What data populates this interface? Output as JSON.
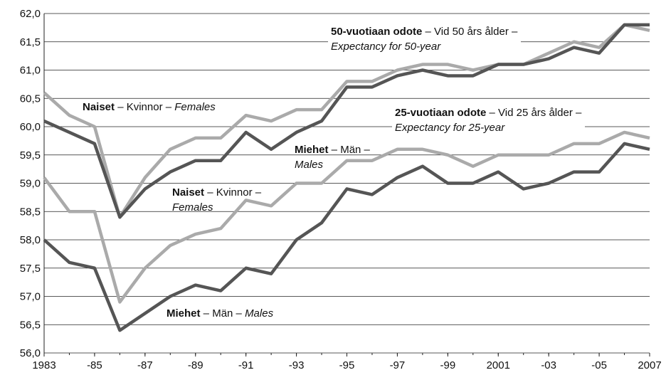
{
  "chart_data": {
    "type": "line",
    "x": [
      1983,
      1984,
      1985,
      1986,
      1987,
      1988,
      1989,
      1990,
      1991,
      1992,
      1993,
      1994,
      1995,
      1996,
      1997,
      1998,
      1999,
      2000,
      2001,
      2002,
      2003,
      2004,
      2005,
      2006,
      2007
    ],
    "series": [
      {
        "color": "#aaaaaa",
        "values": [
          60.6,
          60.2,
          60.0,
          58.4,
          59.1,
          59.6,
          59.8,
          59.8,
          60.2,
          60.1,
          60.3,
          60.3,
          60.8,
          60.8,
          61.0,
          61.1,
          61.1,
          61.0,
          61.1,
          61.1,
          61.3,
          61.5,
          61.4,
          61.8,
          61.7
        ]
      },
      {
        "color": "#555555",
        "values": [
          60.1,
          59.9,
          59.7,
          58.4,
          58.9,
          59.2,
          59.4,
          59.4,
          59.9,
          59.6,
          59.9,
          60.1,
          60.7,
          60.7,
          60.9,
          61.0,
          60.9,
          60.9,
          61.1,
          61.1,
          61.2,
          61.4,
          61.3,
          61.8,
          61.8
        ]
      },
      {
        "color": "#aaaaaa",
        "values": [
          59.1,
          58.5,
          58.5,
          56.9,
          57.5,
          57.9,
          58.1,
          58.2,
          58.7,
          58.6,
          59.0,
          59.0,
          59.4,
          59.4,
          59.6,
          59.6,
          59.5,
          59.3,
          59.5,
          59.5,
          59.5,
          59.7,
          59.7,
          59.9,
          59.8
        ]
      },
      {
        "color": "#555555",
        "values": [
          58.0,
          57.6,
          57.5,
          56.4,
          56.7,
          57.0,
          57.2,
          57.1,
          57.5,
          57.4,
          58.0,
          58.3,
          58.9,
          58.8,
          59.1,
          59.3,
          59.0,
          59.0,
          59.2,
          58.9,
          59.0,
          59.2,
          59.2,
          59.7,
          59.6
        ]
      }
    ],
    "xlim": [
      1983,
      2007
    ],
    "xticks": [
      1983,
      {
        "value": 1985,
        "label": "-85"
      },
      {
        "value": 1987,
        "label": "-87"
      },
      {
        "value": 1989,
        "label": "-89"
      },
      {
        "value": 1991,
        "label": "-91"
      },
      {
        "value": 1993,
        "label": "-93"
      },
      {
        "value": 1995,
        "label": "-95"
      },
      {
        "value": 1997,
        "label": "-97"
      },
      {
        "value": 1999,
        "label": "-99"
      },
      2001,
      {
        "value": 2003,
        "label": "-03"
      },
      {
        "value": 2005,
        "label": "-05"
      },
      2007
    ],
    "ylim": [
      56,
      62
    ],
    "yticks": [
      {
        "value": 56,
        "label": "56,0"
      },
      {
        "value": 56.5,
        "label": "56,5"
      },
      {
        "value": 57,
        "label": "57,0"
      },
      {
        "value": 57.5,
        "label": "57,5"
      },
      {
        "value": 58,
        "label": "58,0"
      },
      {
        "value": 58.5,
        "label": "58,5"
      },
      {
        "value": 59,
        "label": "59,0"
      },
      {
        "value": 59.5,
        "label": "59,5"
      },
      {
        "value": 60,
        "label": "60,0"
      },
      {
        "value": 60.5,
        "label": "60,5"
      },
      {
        "value": 61,
        "label": "61,0"
      },
      {
        "value": 61.5,
        "label": "61,5"
      },
      {
        "value": 62,
        "label": "62,0"
      }
    ],
    "grid": true,
    "annotations": [
      {
        "bold": "Naiset",
        "regular": " – Kvinnor – ",
        "italic": "Females"
      },
      {
        "bold": "50-vuotiaan odote",
        "regular": " – Vid 50 års ålder –",
        "italic": "Expectancy for 50-year"
      },
      {
        "bold": "25-vuotiaan odote",
        "regular": " – Vid 25 års ålder –",
        "italic": "Expectancy for 25-year"
      },
      {
        "bold": "Miehet",
        "regular": " – Män –",
        "italic": "Males"
      },
      {
        "bold": "Naiset",
        "regular": " – Kvinnor –",
        "italic": "Females"
      },
      {
        "bold": "Miehet",
        "regular": " – Män – ",
        "italic": "Males"
      }
    ]
  }
}
